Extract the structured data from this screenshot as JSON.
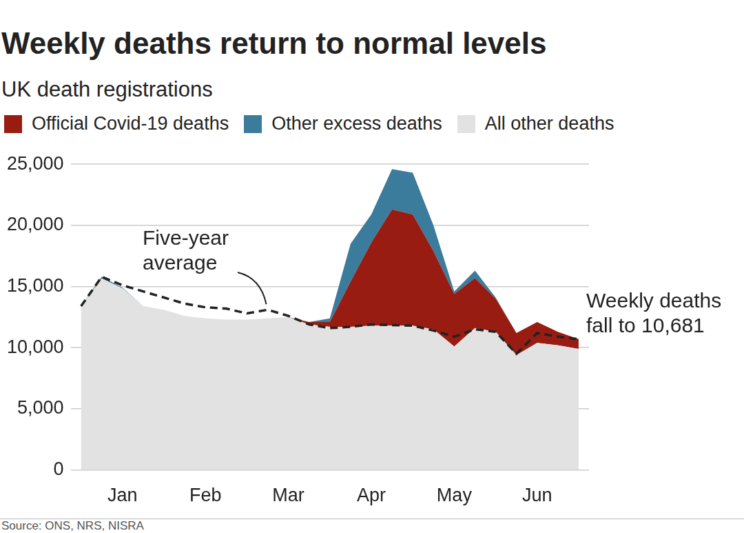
{
  "chart_data": {
    "type": "area",
    "title": "Weekly deaths return to normal levels",
    "subtitle": "UK death registrations",
    "source": "Source: ONS, NRS, NISRA",
    "annotations": [
      {
        "text": "Five-year average"
      },
      {
        "text": "Weekly deaths fall to 10,681"
      }
    ],
    "categories": [
      null,
      null,
      "Jan",
      null,
      null,
      null,
      "Feb",
      null,
      null,
      null,
      "Mar",
      null,
      null,
      null,
      "Apr",
      null,
      null,
      null,
      "May",
      null,
      null,
      null,
      "Jun",
      null,
      null
    ],
    "series": [
      {
        "name": "All other deaths",
        "color": "#e2e2e2",
        "values": [
          13400,
          15650,
          14850,
          13400,
          13100,
          12600,
          12400,
          12300,
          12300,
          12400,
          12500,
          11900,
          11700,
          11700,
          11800,
          11800,
          11800,
          11500,
          10100,
          11600,
          11300,
          9400,
          10400,
          10200,
          9900
        ]
      },
      {
        "name": "Official Covid-19 deaths",
        "color": "#981c12",
        "values": [
          0,
          0,
          0,
          0,
          0,
          0,
          0,
          0,
          0,
          0,
          0,
          200,
          400,
          3700,
          6800,
          9500,
          9100,
          6400,
          4300,
          4100,
          2700,
          1800,
          1700,
          1100,
          800
        ]
      },
      {
        "name": "Other excess deaths",
        "color": "#3b7b9c",
        "values": [
          0,
          150,
          50,
          0,
          0,
          0,
          0,
          0,
          0,
          0,
          0,
          0,
          300,
          3100,
          2300,
          3300,
          3400,
          2100,
          200,
          600,
          100,
          0,
          0,
          0,
          0
        ]
      },
      {
        "name": "Five-year average",
        "type": "line",
        "line_style": "dashed",
        "color": "#222222",
        "values": [
          13400,
          15800,
          15100,
          14600,
          14100,
          13600,
          13300,
          13200,
          12800,
          13100,
          12600,
          11900,
          11600,
          11700,
          11900,
          11850,
          11800,
          11400,
          10900,
          11500,
          11300,
          9500,
          11200,
          10900,
          10700
        ]
      }
    ],
    "stacked": true,
    "legend": "top-left",
    "grid": true,
    "ylim": [
      0,
      25000
    ],
    "yticks": [
      0,
      {
        "value": 5000,
        "label": "5,000"
      },
      {
        "value": 10000,
        "label": "10,000"
      },
      {
        "value": 15000,
        "label": "15,000"
      },
      {
        "value": 20000,
        "label": "20,000"
      },
      {
        "value": 25000,
        "label": "25,000"
      }
    ]
  }
}
